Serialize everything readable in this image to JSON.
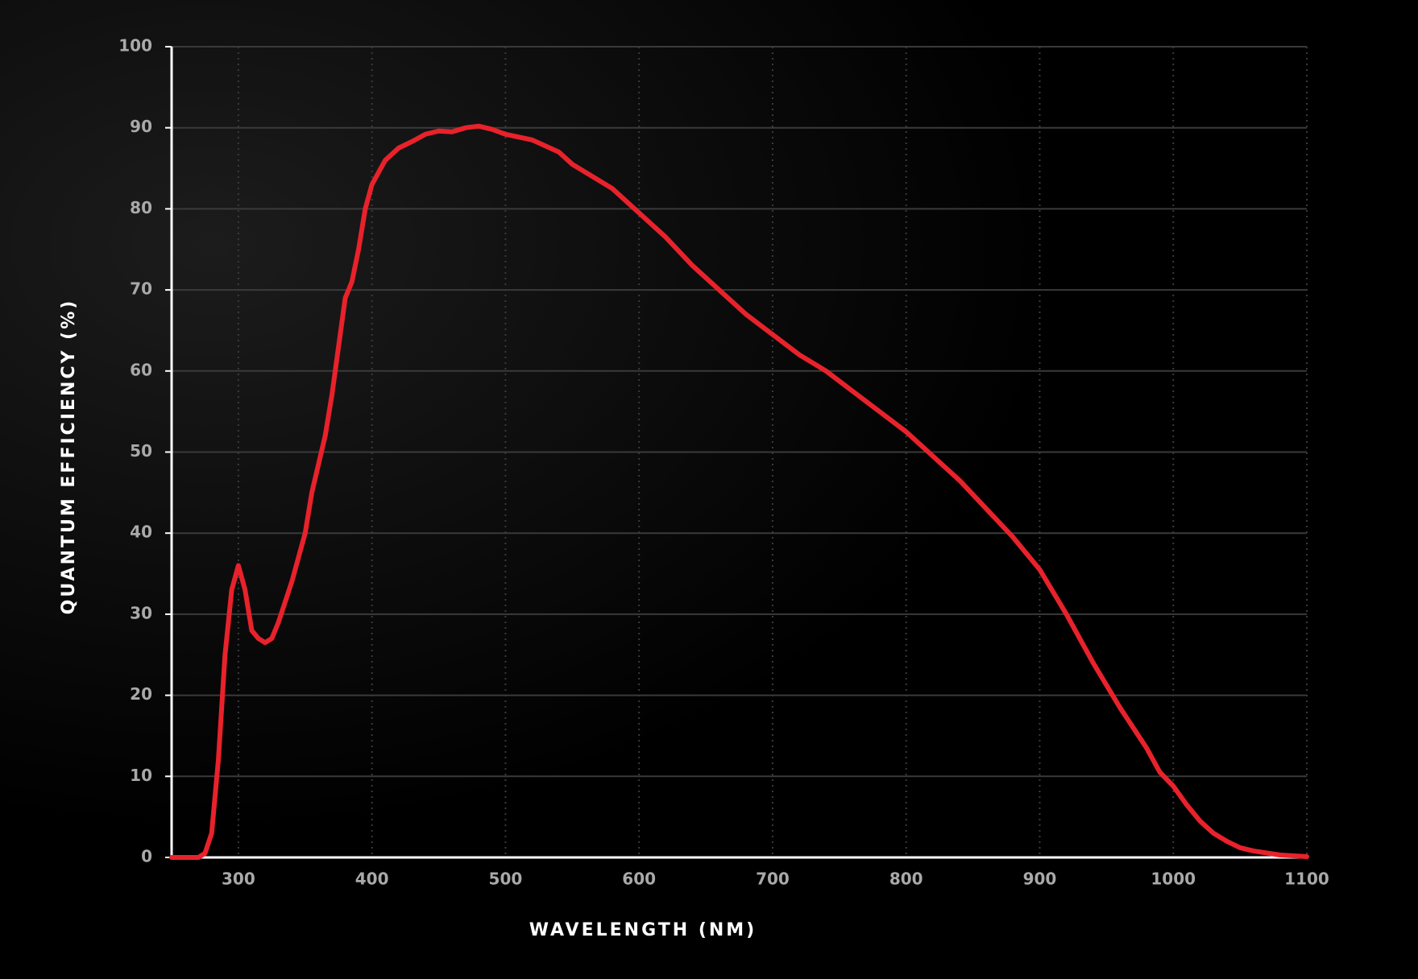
{
  "chart_data": {
    "type": "line",
    "x_label": "WAVELENGTH (NM)",
    "y_label": "QUANTUM EFFICIENCY (%)",
    "xlim": [
      250,
      1100
    ],
    "xticks": [
      300,
      400,
      500,
      600,
      700,
      800,
      900,
      1000,
      1100
    ],
    "ylim": [
      0,
      100
    ],
    "yticks": [
      0,
      10,
      20,
      30,
      40,
      50,
      60,
      70,
      80,
      90,
      100
    ],
    "grid": true,
    "x": [
      250,
      270,
      275,
      280,
      285,
      290,
      295,
      300,
      305,
      310,
      315,
      320,
      325,
      330,
      340,
      350,
      355,
      365,
      370,
      375,
      380,
      385,
      390,
      395,
      400,
      410,
      420,
      430,
      440,
      450,
      460,
      470,
      480,
      490,
      500,
      520,
      540,
      550,
      560,
      580,
      600,
      620,
      640,
      660,
      680,
      700,
      720,
      740,
      760,
      780,
      800,
      820,
      840,
      860,
      880,
      900,
      920,
      940,
      960,
      980,
      990,
      1000,
      1010,
      1020,
      1030,
      1040,
      1050,
      1060,
      1080,
      1100
    ],
    "series": [
      {
        "color": "#e8222b",
        "values": [
          0,
          0,
          0.5,
          3,
          12,
          25,
          33,
          36,
          33,
          28,
          27,
          26.5,
          27,
          29,
          34,
          40,
          45,
          52,
          57,
          63,
          69,
          71,
          75,
          80,
          83,
          86,
          87.5,
          88.3,
          89.2,
          89.6,
          89.5,
          90,
          90.2,
          89.8,
          89.2,
          88.5,
          87,
          85.5,
          84.5,
          82.5,
          79.5,
          76.5,
          73,
          70,
          67,
          64.5,
          62,
          60,
          57.5,
          55,
          52.5,
          49.5,
          46.5,
          43,
          39.5,
          35.5,
          30,
          24,
          18.5,
          13.5,
          10.5,
          8.8,
          6.5,
          4.5,
          3,
          2,
          1.2,
          0.8,
          0.3,
          0.1
        ]
      }
    ]
  }
}
